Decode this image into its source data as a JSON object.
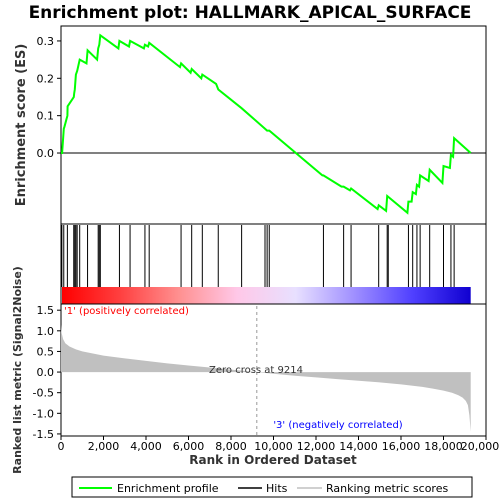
{
  "chart_data": {
    "type": "line",
    "title": "Enrichment plot: HALLMARK_APICAL_SURFACE",
    "xlabel": "Rank in Ordered Dataset",
    "xlim": [
      0,
      20000
    ],
    "x_ticks": [
      "0",
      "2,000",
      "4,000",
      "6,000",
      "8,000",
      "10,000",
      "12,000",
      "14,000",
      "16,000",
      "18,000",
      "20,000"
    ],
    "x_tick_values": [
      0,
      2000,
      4000,
      6000,
      8000,
      10000,
      12000,
      14000,
      16000,
      18000,
      20000
    ],
    "n_genes": 19280,
    "es_panel": {
      "ylabel": "Enrichment score (ES)",
      "ylim": [
        -0.19,
        0.34
      ],
      "y_ticks": [
        "0.0",
        "0.1",
        "0.2",
        "0.3"
      ],
      "y_tick_values": [
        0.0,
        0.1,
        0.2,
        0.3
      ],
      "series_color": "#00ff00",
      "series": {
        "name": "Enrichment profile",
        "x": [
          0,
          50,
          130,
          160,
          300,
          310,
          600,
          620,
          650,
          700,
          760,
          880,
          1200,
          1250,
          1700,
          1750,
          1800,
          1850,
          2700,
          2750,
          3200,
          3250,
          3900,
          3950,
          4100,
          4150,
          5600,
          5650,
          6100,
          6150,
          6600,
          6650,
          7300,
          7400,
          8500,
          9600,
          9700,
          9800,
          12300,
          12350,
          13200,
          13300,
          13600,
          13650,
          14900,
          14950,
          15300,
          15350,
          16300,
          16350,
          16500,
          16550,
          16700,
          16750,
          16850,
          16900,
          17300,
          17350,
          17950,
          18000,
          18300,
          18350,
          18450,
          18500,
          19280
        ],
        "y": [
          0.0,
          0.0,
          0.065,
          0.07,
          0.1,
          0.125,
          0.15,
          0.16,
          0.17,
          0.21,
          0.22,
          0.25,
          0.24,
          0.275,
          0.25,
          0.28,
          0.29,
          0.315,
          0.28,
          0.3,
          0.285,
          0.3,
          0.28,
          0.29,
          0.285,
          0.295,
          0.23,
          0.24,
          0.215,
          0.225,
          0.2,
          0.21,
          0.185,
          0.17,
          0.12,
          0.065,
          0.06,
          0.06,
          -0.06,
          -0.06,
          -0.09,
          -0.09,
          -0.1,
          -0.095,
          -0.15,
          -0.14,
          -0.155,
          -0.115,
          -0.16,
          -0.13,
          -0.13,
          -0.105,
          -0.11,
          -0.085,
          -0.09,
          -0.06,
          -0.075,
          -0.045,
          -0.08,
          -0.035,
          -0.04,
          -0.005,
          -0.01,
          0.04,
          0.0
        ]
      },
      "hits": [
        40,
        130,
        300,
        600,
        650,
        700,
        760,
        880,
        1250,
        1750,
        1800,
        1850,
        2750,
        3250,
        3950,
        4150,
        5650,
        6150,
        6650,
        7400,
        8500,
        9600,
        9700,
        9800,
        12350,
        13300,
        13650,
        14950,
        15350,
        15400,
        16350,
        16550,
        16750,
        16900,
        17350,
        18000,
        18350,
        18500
      ]
    },
    "metric_panel": {
      "ylabel": "Ranked list metric (Signal2Noise)",
      "ylim": [
        -1.55,
        1.65
      ],
      "y_ticks": [
        "1.5",
        "1.0",
        "0.5",
        "0.0",
        "-0.5",
        "-1.0",
        "-1.5"
      ],
      "y_tick_values": [
        1.5,
        1.0,
        0.5,
        0.0,
        -0.5,
        -1.0,
        -1.5
      ],
      "fill_color": "#c0c0c0",
      "profile_x": [
        0,
        30,
        100,
        200,
        400,
        700,
        1000,
        2000,
        3000,
        4000,
        5000,
        6000,
        7000,
        8000,
        9214,
        10000,
        11000,
        12000,
        13000,
        14000,
        15000,
        16000,
        17000,
        17500,
        18000,
        18400,
        18700,
        18900,
        19050,
        19150,
        19220,
        19280
      ],
      "profile_y": [
        1.15,
        0.95,
        0.8,
        0.7,
        0.62,
        0.55,
        0.5,
        0.4,
        0.33,
        0.27,
        0.21,
        0.16,
        0.11,
        0.06,
        0.0,
        -0.04,
        -0.09,
        -0.13,
        -0.17,
        -0.21,
        -0.25,
        -0.3,
        -0.36,
        -0.4,
        -0.45,
        -0.5,
        -0.56,
        -0.62,
        -0.7,
        -0.8,
        -1.05,
        -1.45
      ],
      "zero_cross_label": "Zero cross at 9214",
      "zero_cross": 9214,
      "pos_label": "'1' (positively correlated)",
      "neg_label": "'3' (negatively correlated)",
      "pos_color": "#ff0000",
      "neg_color": "#0000ff"
    },
    "legend": [
      {
        "label": "Enrichment profile",
        "color": "#00ff00"
      },
      {
        "label": "Hits",
        "color": "#000000"
      },
      {
        "label": "Ranking metric scores",
        "color": "#c0c0c0"
      }
    ],
    "heatmap_gradient": [
      "#ff0000",
      "#ff4040",
      "#ff9090",
      "#ffc8e8",
      "#e8e0ff",
      "#a090ff",
      "#5040ff",
      "#1000d0"
    ],
    "grid": false,
    "legend_placement": "bottom"
  }
}
